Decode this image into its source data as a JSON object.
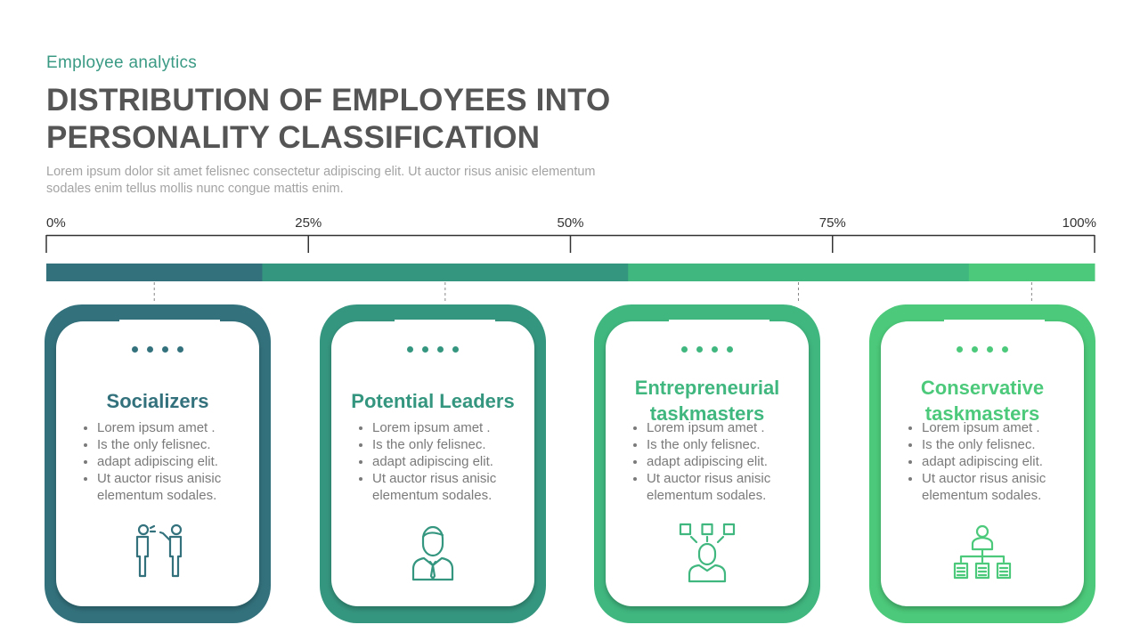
{
  "header": {
    "subtitle": "Employee analytics",
    "title": "DISTRIBUTION OF EMPLOYEES INTO\nPERSONALITY CLASSIFICATION",
    "description": "Lorem ipsum dolor sit amet felisnec consectetur adipiscing elit. Ut auctor risus anisic elementum sodales enim tellus mollis nunc congue mattis enim."
  },
  "chart_data": {
    "type": "bar",
    "orientation": "horizontal-stacked-100",
    "scale_ticks": [
      "0%",
      "25%",
      "50%",
      "75%",
      "100%"
    ],
    "xlim": [
      0,
      100
    ],
    "segments": [
      {
        "name": "Socializers",
        "start": 0,
        "end": 20.6,
        "color": "#33727d"
      },
      {
        "name": "Potential Leaders",
        "start": 20.6,
        "end": 55.5,
        "color": "#35967f"
      },
      {
        "name": "Entrepreneurial taskmasters",
        "start": 55.5,
        "end": 88,
        "color": "#40b77f"
      },
      {
        "name": "Conservative taskmasters",
        "start": 88,
        "end": 100,
        "color": "#4cc97a"
      }
    ],
    "grid": false,
    "legend": "none"
  },
  "cards": [
    {
      "title": "Socializers",
      "color": "#33727d",
      "icon": "people-talking-icon",
      "bullets": [
        "Lorem ipsum amet .",
        "Is the only felisnec.",
        "adapt adipiscing elit.",
        "Ut auctor risus anisic elementum sodales."
      ]
    },
    {
      "title": "Potential Leaders",
      "color": "#35967f",
      "icon": "businessman-icon",
      "bullets": [
        "Lorem ipsum amet .",
        "Is the only felisnec.",
        "adapt adipiscing elit.",
        "Ut auctor risus anisic elementum sodales."
      ]
    },
    {
      "title": "Entrepreneurial taskmasters",
      "color": "#40b77f",
      "icon": "person-with-tasks-icon",
      "bullets": [
        "Lorem ipsum amet .",
        "Is the only felisnec.",
        "adapt adipiscing elit.",
        "Ut auctor risus anisic elementum sodales."
      ]
    },
    {
      "title": "Conservative taskmasters",
      "color": "#4cc97a",
      "icon": "hierarchy-icon",
      "bullets": [
        "Lorem ipsum amet .",
        "Is the only felisnec.",
        "adapt adipiscing elit.",
        "Ut auctor risus anisic elementum sodales."
      ]
    }
  ]
}
